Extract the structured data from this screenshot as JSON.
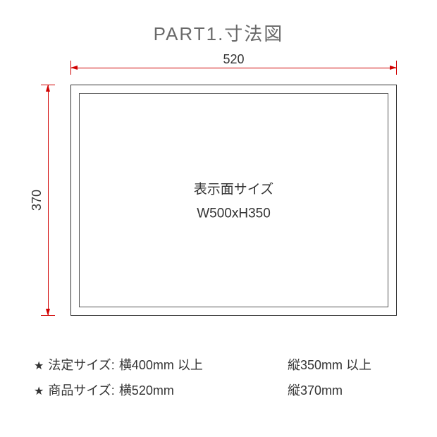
{
  "title": "PART1.寸法図",
  "dimensions": {
    "width_label": "520",
    "height_label": "370",
    "outer_width_mm": 520,
    "outer_height_mm": 370,
    "dimension_line_color": "#d00000",
    "rect_border_color": "#333333",
    "inner_border_color": "#555555",
    "background_color": "#ffffff"
  },
  "center": {
    "line1": "表示面サイズ",
    "line2": "W500xH350"
  },
  "specs": [
    {
      "star": "★",
      "label": "法定サイズ:",
      "val1": "横400mm 以上",
      "val2": "縦350mm 以上"
    },
    {
      "star": "★",
      "label": "商品サイズ:",
      "val1": "横520mm",
      "val2": "縦370mm"
    }
  ],
  "typography": {
    "title_fontsize": 26,
    "title_color": "#6a6a6a",
    "body_fontsize": 18,
    "body_color": "#333333",
    "center_fontsize": 19
  }
}
